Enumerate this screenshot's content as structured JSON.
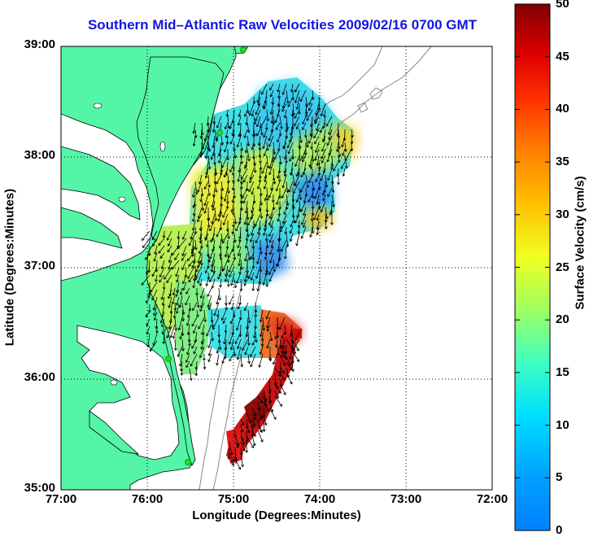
{
  "title": "Southern Mid–Atlantic Raw Velocities 2009/02/16 0700 GMT",
  "x_axis": {
    "label": "Longitude (Degrees:Minutes)",
    "ticks": [
      "77:00",
      "76:00",
      "75:00",
      "74:00",
      "73:00",
      "72:00"
    ]
  },
  "y_axis": {
    "label": "Latitude (Degrees:Minutes)",
    "ticks": [
      "39:00",
      "38:00",
      "37:00",
      "36:00",
      "35:00"
    ]
  },
  "colorbar": {
    "label": "Surface Velocity (cm/s)",
    "ticks": [
      "50",
      "45",
      "40",
      "35",
      "30",
      "25",
      "20",
      "15",
      "10",
      "5",
      "0"
    ],
    "min": 0,
    "max": 50,
    "colormap": "jet"
  },
  "colors": {
    "land": "#55f5a8",
    "title": "#1515e0",
    "vector": "#000000",
    "isobath": "#8a8a8a",
    "station": "#22dd22"
  },
  "map_extent": {
    "lon_min": -77,
    "lon_max": -72,
    "lat_min": 35,
    "lat_max": 39
  },
  "grid": "dotted"
}
